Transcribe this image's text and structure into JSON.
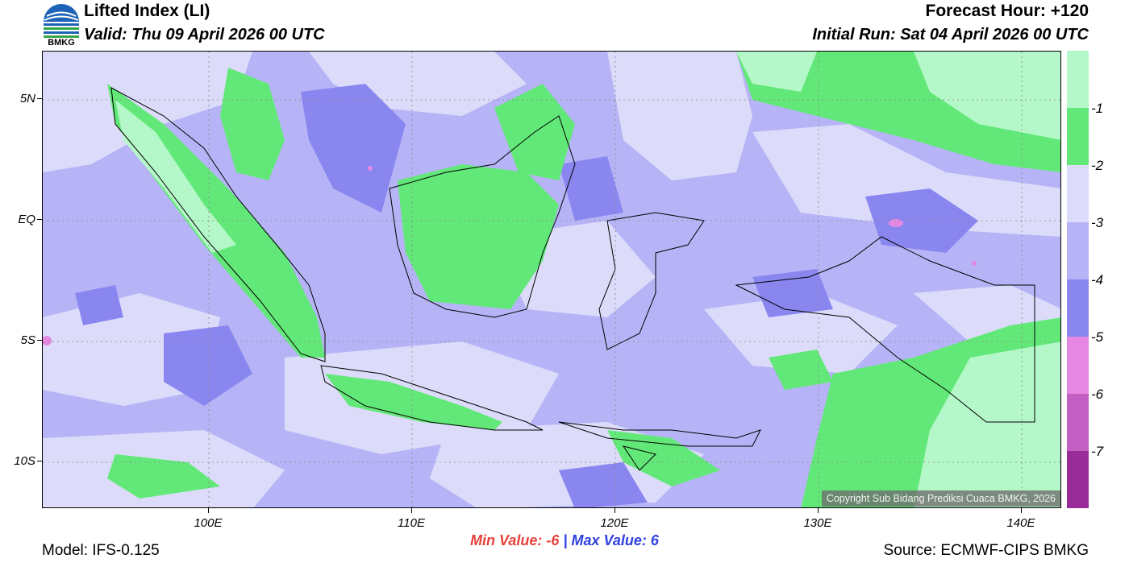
{
  "header": {
    "title": "Lifted Index (LI)",
    "valid": "Valid: Thu 09 April 2026 00 UTC",
    "forecast_hour": "Forecast Hour: +120",
    "initial_run": "Initial Run: Sat 04 April 2026 00 UTC"
  },
  "logo": {
    "text": "BMKG",
    "icon": "bmkg-logo-icon"
  },
  "map": {
    "lat_labels": [
      "5N",
      "EQ",
      "5S",
      "10S"
    ],
    "lon_labels": [
      "100E",
      "110E",
      "120E",
      "130E",
      "140E"
    ],
    "copyright": "Copyright Sub Bidang Prediksi Cuaca BMKG, 2026"
  },
  "colorbar": {
    "labels": [
      "-1",
      "-2",
      "-3",
      "-4",
      "-5",
      "-6",
      "-7"
    ],
    "colors": [
      "#b4f7c8",
      "#62e878",
      "#dcdcfa",
      "#b6b4f6",
      "#8a86f0",
      "#e488e2",
      "#c460c4",
      "#9a2c9a"
    ]
  },
  "stats": {
    "min_label": "Min Value:",
    "min_value": "-6",
    "separator": "|",
    "max_label": "Max Value:",
    "max_value": "6"
  },
  "footer": {
    "model": "Model: IFS-0.125",
    "source": "Source: ECMWF-CIPS BMKG"
  }
}
